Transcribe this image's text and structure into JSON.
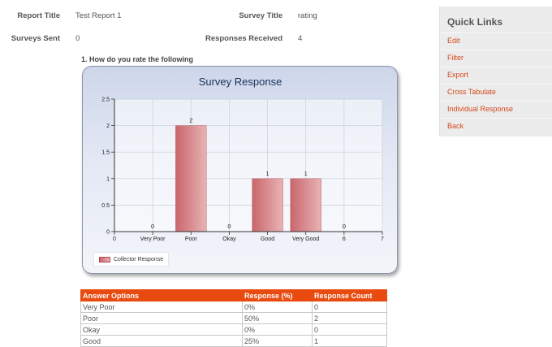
{
  "report": {
    "report_title_label": "Report Title",
    "report_title_value": "Test Report 1",
    "survey_title_label": "Survey Title",
    "survey_title_value": "rating",
    "surveys_sent_label": "Surveys Sent",
    "surveys_sent_value": "0",
    "responses_received_label": "Responses Received",
    "responses_received_value": "4"
  },
  "question": "1. How do you rate the following",
  "chart_data": {
    "type": "bar",
    "title": "Survey Response",
    "xlabel": "",
    "ylabel": "",
    "x_ticks": [
      "0",
      "Very Poor",
      "Poor",
      "Okay",
      "Good",
      "Very Good",
      "6",
      "7"
    ],
    "categories": [
      "Very Poor",
      "Poor",
      "Okay",
      "Good",
      "Very Good",
      "6"
    ],
    "x_positions": [
      1,
      2,
      3,
      4,
      5,
      6
    ],
    "values": [
      0,
      2,
      0,
      1,
      1,
      0
    ],
    "data_labels": [
      "0",
      "2",
      "0",
      "1",
      "1",
      "0"
    ],
    "y_ticks": [
      "0",
      "0.5",
      "1",
      "1.5",
      "2",
      "2.5"
    ],
    "ylim": [
      0,
      2.5
    ],
    "xlim": [
      0,
      7
    ],
    "grid": true,
    "legend": "bottom-left",
    "series": [
      {
        "name": "Collector Response",
        "values": [
          0,
          2,
          0,
          1,
          1,
          0
        ]
      }
    ],
    "colors": {
      "bar": "#c9666b",
      "bar_light": "#e8b3b5",
      "title": "#1c2f5a"
    }
  },
  "table": {
    "headers": [
      "Answer Options",
      "Response (%)",
      "Response Count"
    ],
    "rows": [
      [
        "Very Poor",
        "0%",
        "0"
      ],
      [
        "Poor",
        "50%",
        "2"
      ],
      [
        "Okay",
        "0%",
        "0"
      ],
      [
        "Good",
        "25%",
        "1"
      ]
    ]
  },
  "quick_links": {
    "title": "Quick Links",
    "items": [
      "Edit",
      "Filter",
      "Export",
      "Cross Tabulate",
      "Individual Response",
      "Back"
    ]
  },
  "colors": {
    "accent": "#e84a0f",
    "link": "#d4481c"
  }
}
